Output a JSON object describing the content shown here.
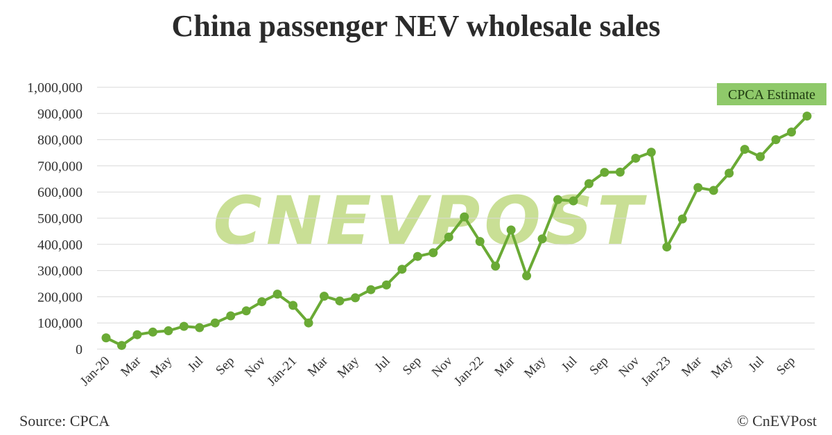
{
  "title": "China passenger NEV wholesale sales",
  "source": "Source: CPCA",
  "copyright": "© CnEVPost",
  "watermark": "CNEVPOST",
  "colors": {
    "line": "#6aaa35",
    "marker": "#6aaa35",
    "annotation_bg": "#8fc96a",
    "grid": "#d9d9d9",
    "watermark": "#a9cc55"
  },
  "chart_data": {
    "type": "line",
    "title": "China passenger NEV wholesale sales",
    "xlabel": "",
    "ylabel": "",
    "ylim": [
      0,
      1000000
    ],
    "yticks": [
      "0",
      "100,000",
      "200,000",
      "300,000",
      "400,000",
      "500,000",
      "600,000",
      "700,000",
      "800,000",
      "900,000",
      "1,000,000"
    ],
    "grid": true,
    "legend": "none",
    "x": [
      "Jan-20",
      "Feb-20",
      "Mar-20",
      "Apr-20",
      "May-20",
      "Jun-20",
      "Jul-20",
      "Aug-20",
      "Sep-20",
      "Oct-20",
      "Nov-20",
      "Dec-20",
      "Jan-21",
      "Feb-21",
      "Mar-21",
      "Apr-21",
      "May-21",
      "Jun-21",
      "Jul-21",
      "Aug-21",
      "Sep-21",
      "Oct-21",
      "Nov-21",
      "Dec-21",
      "Jan-22",
      "Feb-22",
      "Mar-22",
      "Apr-22",
      "May-22",
      "Jun-22",
      "Jul-22",
      "Aug-22",
      "Sep-22",
      "Oct-22",
      "Nov-22",
      "Dec-22",
      "Jan-23",
      "Feb-23",
      "Mar-23",
      "Apr-23",
      "May-23",
      "Jun-23",
      "Jul-23",
      "Aug-23",
      "Sep-23",
      "Oct-23"
    ],
    "xtick_labels": [
      {
        "index": 0,
        "label": "Jan-20"
      },
      {
        "index": 2,
        "label": "Mar"
      },
      {
        "index": 4,
        "label": "May"
      },
      {
        "index": 6,
        "label": "Jul"
      },
      {
        "index": 8,
        "label": "Sep"
      },
      {
        "index": 10,
        "label": "Nov"
      },
      {
        "index": 12,
        "label": "Jan-21"
      },
      {
        "index": 14,
        "label": "Mar"
      },
      {
        "index": 16,
        "label": "May"
      },
      {
        "index": 18,
        "label": "Jul"
      },
      {
        "index": 20,
        "label": "Sep"
      },
      {
        "index": 22,
        "label": "Nov"
      },
      {
        "index": 24,
        "label": "Jan-22"
      },
      {
        "index": 26,
        "label": "Mar"
      },
      {
        "index": 28,
        "label": "May"
      },
      {
        "index": 30,
        "label": "Jul"
      },
      {
        "index": 32,
        "label": "Sep"
      },
      {
        "index": 34,
        "label": "Nov"
      },
      {
        "index": 36,
        "label": "Jan-23"
      },
      {
        "index": 38,
        "label": "Mar"
      },
      {
        "index": 40,
        "label": "May"
      },
      {
        "index": 42,
        "label": "Jul"
      },
      {
        "index": 44,
        "label": "Sep"
      }
    ],
    "series": [
      {
        "values": [
          43000,
          14000,
          55000,
          65000,
          70000,
          87000,
          82000,
          100000,
          127000,
          146000,
          181000,
          210000,
          167000,
          100000,
          202000,
          184000,
          196000,
          227000,
          245000,
          305000,
          354000,
          368000,
          428000,
          505000,
          411000,
          317000,
          455000,
          280000,
          421000,
          571000,
          566000,
          632000,
          675000,
          676000,
          729000,
          752000,
          390000,
          497000,
          617000,
          606000,
          672000,
          763000,
          735000,
          800000,
          829000,
          890000
        ]
      }
    ],
    "annotations": [
      {
        "text": "CPCA Estimate",
        "x": "Oct-23"
      }
    ]
  }
}
